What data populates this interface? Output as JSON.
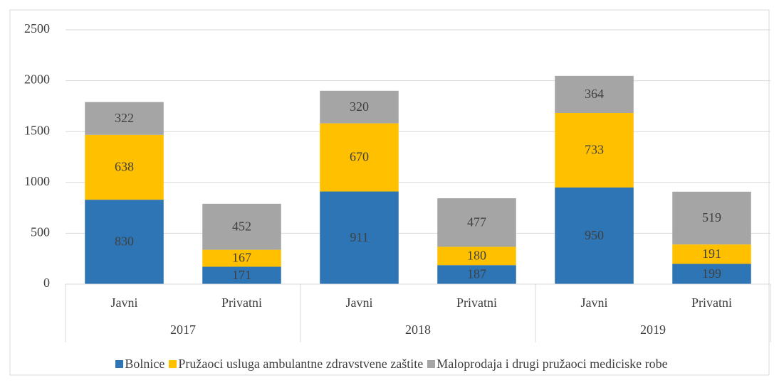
{
  "chart_data": {
    "type": "stacked_bar",
    "categories": [
      "Javni",
      "Privatni",
      "Javni",
      "Privatni",
      "Javni",
      "Privatni"
    ],
    "groups": [
      "2017",
      "2018",
      "2019"
    ],
    "series": [
      {
        "name": "Bolnice",
        "color": "#2e75b6",
        "values": [
          830,
          171,
          911,
          187,
          950,
          199
        ]
      },
      {
        "name": "Pružaoci usluga ambulantne zdravstvene zaštite",
        "color": "#ffc000",
        "values": [
          638,
          167,
          670,
          180,
          733,
          191
        ]
      },
      {
        "name": "Maloprodaja i drugi pružaoci mediciske robe",
        "color": "#a5a5a5",
        "values": [
          322,
          452,
          320,
          477,
          364,
          519
        ]
      }
    ],
    "ylim": [
      0,
      2500
    ],
    "yticks": [
      0,
      500,
      1000,
      1500,
      2000,
      2500
    ],
    "grid": true,
    "legend": "bottom"
  }
}
